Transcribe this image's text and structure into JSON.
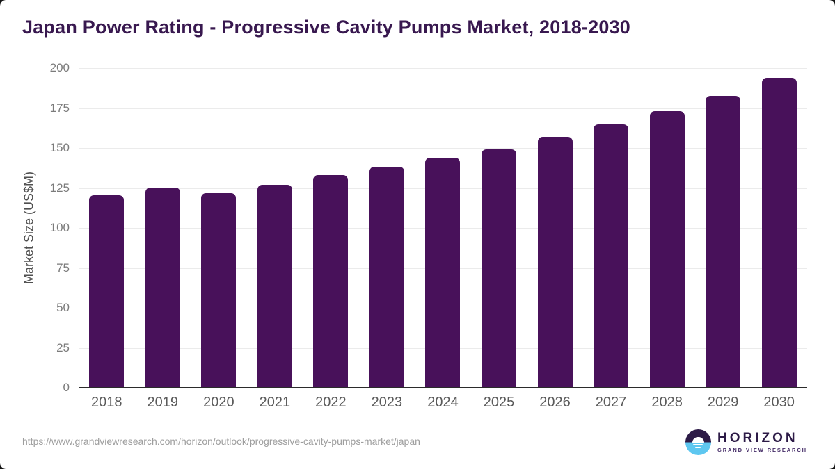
{
  "page": {
    "title": "Japan Power Rating - Progressive Cavity Pumps Market, 2018-2030"
  },
  "chart_data": {
    "type": "bar",
    "title": "Japan Power Rating - Progressive Cavity Pumps Market, 2018-2030",
    "categories": [
      "2018",
      "2019",
      "2020",
      "2021",
      "2022",
      "2023",
      "2024",
      "2025",
      "2026",
      "2027",
      "2028",
      "2029",
      "2030"
    ],
    "values": [
      120.6,
      125.4,
      121.6,
      126.9,
      133.0,
      138.1,
      143.9,
      149.1,
      156.8,
      164.7,
      173.1,
      182.4,
      193.9
    ],
    "xlabel": "",
    "ylabel": "Market Size (US$M)",
    "ylim": [
      0,
      200
    ],
    "yticks": [
      0,
      25,
      50,
      75,
      100,
      125,
      150,
      175,
      200
    ],
    "grid": true,
    "legend": false,
    "bar_color": "#48115a"
  },
  "style": {
    "bar_color": "#48115a",
    "title_color": "#38184f",
    "logo_dark": "#2d1b47",
    "logo_blue": "#5ec7f0"
  },
  "footer": {
    "source_url": "https://www.grandviewresearch.com/horizon/outlook/progressive-cavity-pumps-market/japan",
    "logo": {
      "brand": "HORIZON",
      "tagline": "GRAND VIEW RESEARCH"
    }
  }
}
